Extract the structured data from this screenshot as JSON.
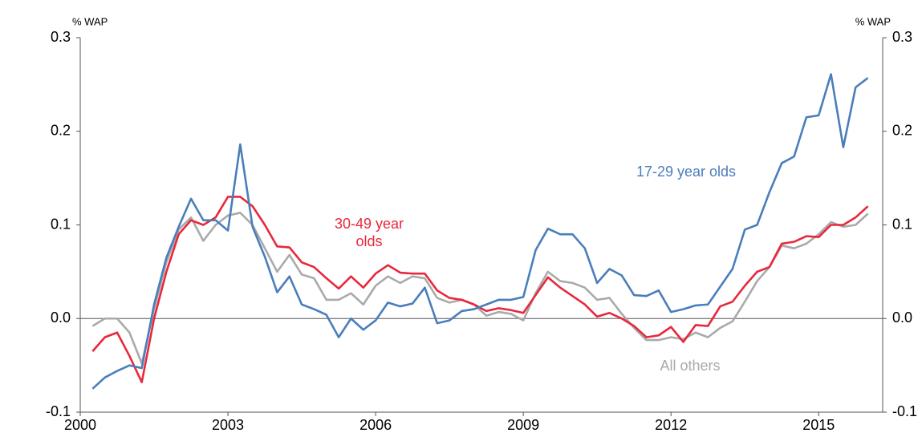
{
  "chart_data": {
    "type": "line",
    "y_label": "% WAP",
    "y2_label": "% WAP",
    "x": [
      2000.25,
      2000.5,
      2000.75,
      2001,
      2001.25,
      2001.5,
      2001.75,
      2002,
      2002.25,
      2002.5,
      2002.75,
      2003,
      2003.25,
      2003.5,
      2003.75,
      2004,
      2004.25,
      2004.5,
      2004.75,
      2005,
      2005.25,
      2005.5,
      2005.75,
      2006,
      2006.25,
      2006.5,
      2006.75,
      2007,
      2007.25,
      2007.5,
      2007.75,
      2008,
      2008.25,
      2008.5,
      2008.75,
      2009,
      2009.25,
      2009.5,
      2009.75,
      2010,
      2010.25,
      2010.5,
      2010.75,
      2011,
      2011.25,
      2011.5,
      2011.75,
      2012,
      2012.25,
      2012.5,
      2012.75,
      2013,
      2013.25,
      2013.5,
      2013.75,
      2014,
      2014.25,
      2014.5,
      2014.75,
      2015,
      2015.25,
      2015.5,
      2015.75,
      2016
    ],
    "series": [
      {
        "name": "17-29 year olds",
        "color": "#4a7ebb",
        "values": [
          -0.075,
          -0.063,
          -0.056,
          -0.05,
          -0.053,
          0.015,
          0.065,
          0.098,
          0.128,
          0.105,
          0.105,
          0.094,
          0.186,
          0.098,
          0.066,
          0.028,
          0.045,
          0.015,
          0.01,
          0.004,
          -0.02,
          0.0,
          -0.012,
          -0.002,
          0.017,
          0.013,
          0.016,
          0.033,
          -0.005,
          -0.002,
          0.008,
          0.01,
          0.015,
          0.02,
          0.02,
          0.023,
          0.073,
          0.096,
          0.09,
          0.09,
          0.075,
          0.038,
          0.053,
          0.046,
          0.025,
          0.024,
          0.03,
          0.007,
          0.01,
          0.014,
          0.015,
          0.034,
          0.053,
          0.095,
          0.1,
          0.135,
          0.166,
          0.173,
          0.215,
          0.217,
          0.261,
          0.183,
          0.247,
          0.257
        ]
      },
      {
        "name": "30-49 year olds",
        "color": "#e8283c",
        "values": [
          -0.035,
          -0.02,
          -0.015,
          -0.04,
          -0.068,
          0.0,
          0.05,
          0.09,
          0.105,
          0.1,
          0.108,
          0.13,
          0.13,
          0.12,
          0.1,
          0.077,
          0.076,
          0.06,
          0.055,
          0.043,
          0.032,
          0.045,
          0.033,
          0.048,
          0.057,
          0.049,
          0.048,
          0.048,
          0.03,
          0.022,
          0.02,
          0.015,
          0.008,
          0.011,
          0.009,
          0.006,
          0.025,
          0.044,
          0.033,
          0.024,
          0.015,
          0.002,
          0.006,
          0.0,
          -0.008,
          -0.02,
          -0.018,
          -0.009,
          -0.025,
          -0.007,
          -0.008,
          0.013,
          0.018,
          0.035,
          0.05,
          0.055,
          0.08,
          0.082,
          0.088,
          0.087,
          0.1,
          0.1,
          0.108,
          0.12
        ]
      },
      {
        "name": "All others",
        "color": "#aaaaaa",
        "values": [
          -0.008,
          0.0,
          0.0,
          -0.015,
          -0.048,
          0.01,
          0.06,
          0.095,
          0.108,
          0.083,
          0.1,
          0.11,
          0.113,
          0.1,
          0.075,
          0.05,
          0.068,
          0.047,
          0.043,
          0.02,
          0.02,
          0.027,
          0.015,
          0.035,
          0.045,
          0.038,
          0.045,
          0.043,
          0.022,
          0.017,
          0.02,
          0.015,
          0.003,
          0.007,
          0.005,
          -0.002,
          0.027,
          0.05,
          0.04,
          0.038,
          0.033,
          0.02,
          0.022,
          0.005,
          -0.01,
          -0.023,
          -0.023,
          -0.02,
          -0.022,
          -0.015,
          -0.02,
          -0.01,
          -0.003,
          0.018,
          0.04,
          0.055,
          0.078,
          0.075,
          0.08,
          0.09,
          0.103,
          0.098,
          0.1,
          0.112
        ]
      }
    ],
    "xlim": [
      2000,
      2016.3
    ],
    "xticks": [
      2000,
      2003,
      2006,
      2009,
      2012,
      2015
    ],
    "ylim": [
      -0.1,
      0.3
    ],
    "yticks": [
      -0.1,
      {
        "value": 0,
        "label": "0.0"
      },
      0.1,
      0.2,
      0.3
    ],
    "y2lim": [
      -0.1,
      0.3
    ],
    "y2ticks": [
      -0.1,
      {
        "value": 0,
        "label": "0.0"
      },
      0.1,
      0.2,
      0.3
    ]
  }
}
